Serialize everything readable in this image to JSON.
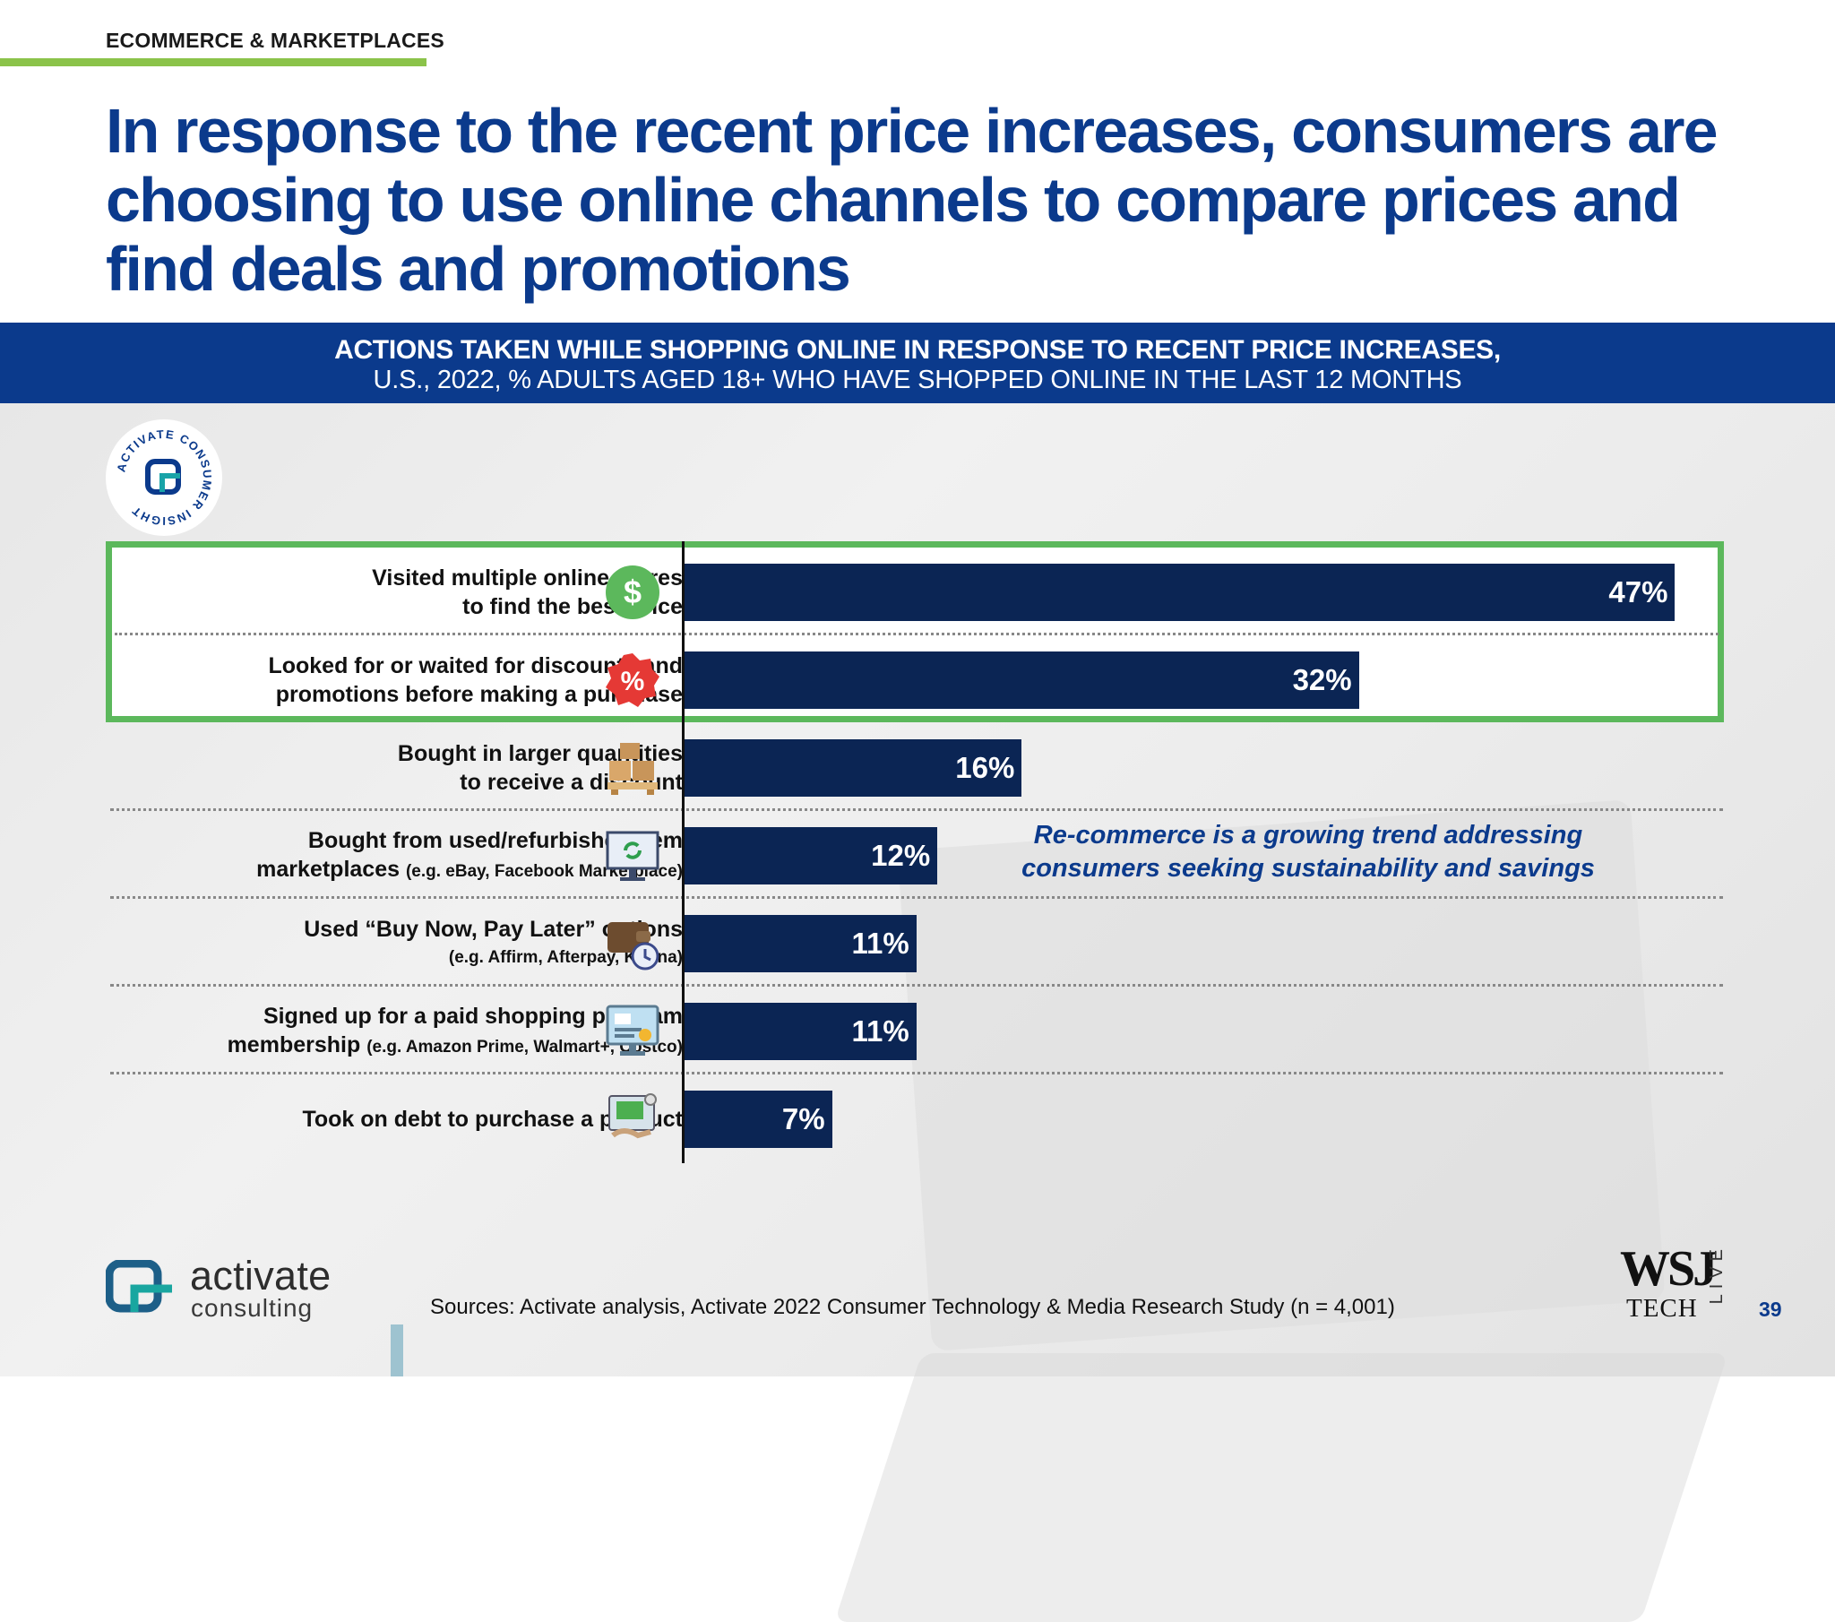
{
  "header": {
    "section_tag": "ECOMMERCE & MARKETPLACES",
    "headline": "In response to the recent price increases, consumers are choosing to use online channels to compare prices and find deals and promotions"
  },
  "colors": {
    "brand_blue": "#0b3a8c",
    "bar_navy": "#0b2554",
    "highlight_green": "#5cb85c",
    "rule_green": "#8bc34a"
  },
  "badge": {
    "text": "ACTIVATE CONSUMER INSIGHT"
  },
  "chart_data": {
    "type": "bar",
    "orientation": "horizontal",
    "title": "ACTIONS TAKEN WHILE SHOPPING ONLINE IN RESPONSE TO RECENT PRICE INCREASES,",
    "subtitle": "U.S., 2022, % ADULTS AGED 18+ WHO HAVE SHOPPED ONLINE IN THE LAST 12 MONTHS",
    "xlim": [
      0,
      50
    ],
    "grid": false,
    "categories": [
      {
        "line1": "Visited multiple online stores",
        "line2": "to find the best price",
        "sub": "",
        "icon": "dollar-icon"
      },
      {
        "line1": "Looked for or waited for discounts and",
        "line2": "promotions before making a purchase",
        "sub": "",
        "icon": "percent-icon"
      },
      {
        "line1": "Bought in larger quantities",
        "line2": "to receive a discount",
        "sub": "",
        "icon": "boxes-icon"
      },
      {
        "line1": "Bought from used/refurbished item",
        "line2": "marketplaces",
        "sub": "(e.g. eBay, Facebook Marketplace)",
        "icon": "refurbished-monitor-icon"
      },
      {
        "line1": "Used “Buy Now, Pay Later” options",
        "line2": "",
        "sub": "(e.g. Affirm, Afterpay, Klarna)",
        "icon": "wallet-clock-icon"
      },
      {
        "line1": "Signed up for a paid shopping program",
        "line2": "membership",
        "sub": "(e.g. Amazon Prime, Walmart+, Costco)",
        "icon": "membership-screen-icon"
      },
      {
        "line1": "Took on debt to purchase a product",
        "line2": "",
        "sub": "",
        "icon": "debt-card-icon"
      }
    ],
    "values": [
      47,
      32,
      16,
      12,
      11,
      11,
      7
    ],
    "value_labels": [
      "47%",
      "32%",
      "16%",
      "12%",
      "11%",
      "11%",
      "7%"
    ],
    "highlighted": [
      0,
      1
    ],
    "annotation": "Re-commerce is a growing trend addressing consumers seeking sustainability and savings"
  },
  "footer": {
    "logo_name": "activate",
    "logo_sub": "consulting",
    "sources": "Sources: Activate analysis, Activate 2022 Consumer Technology & Media Research Study (n = 4,001)",
    "wsj": "WSJ",
    "wsj_tech": "TECH",
    "wsj_live": "LIVE",
    "page_number": "39"
  }
}
